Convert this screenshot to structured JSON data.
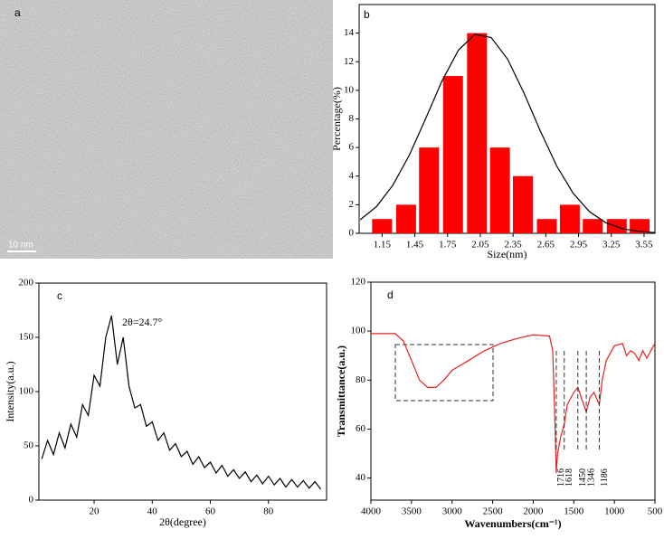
{
  "chart_data": [
    {
      "type": "image",
      "label": "a",
      "scale_bar": "10 nm"
    },
    {
      "type": "bar",
      "label": "b",
      "xlabel": "Size(nm)",
      "ylabel": "Percentage(%)",
      "color": "#ff0000",
      "x": [
        1.15,
        1.37,
        1.58,
        1.8,
        2.02,
        2.23,
        2.44,
        2.66,
        2.87,
        3.08,
        3.3,
        3.51
      ],
      "values": [
        1,
        2,
        6,
        11,
        14,
        6,
        4,
        1,
        2,
        1,
        1,
        1
      ],
      "fit": {
        "color": "#000000",
        "x": [
          0.95,
          1.1,
          1.25,
          1.4,
          1.55,
          1.7,
          1.85,
          2.0,
          2.15,
          2.3,
          2.45,
          2.6,
          2.75,
          2.9,
          3.05,
          3.2,
          3.35,
          3.5,
          3.65
        ],
        "y": [
          0.95,
          1.88,
          3.38,
          5.47,
          8.03,
          10.67,
          12.81,
          13.92,
          13.69,
          12.18,
          9.81,
          7.15,
          4.71,
          2.81,
          1.52,
          0.74,
          0.33,
          0.13,
          0.05
        ]
      },
      "xlim": [
        0.94,
        3.65
      ],
      "xticks": [
        1.15,
        1.45,
        1.75,
        2.05,
        2.35,
        2.65,
        2.95,
        3.25,
        3.55
      ],
      "ylim": [
        0,
        16
      ],
      "yticks": [
        0,
        2,
        4,
        6,
        8,
        10,
        12,
        14
      ]
    },
    {
      "type": "line",
      "label": "c",
      "xlabel": "2θ(degree)",
      "ylabel": "Intensity(a.u.)",
      "annotation": "2θ=24.7°",
      "color": "#000000",
      "x": [
        2,
        4,
        6,
        8,
        10,
        12,
        14,
        16,
        18,
        20,
        22,
        24,
        26,
        28,
        30,
        32,
        34,
        36,
        38,
        40,
        42,
        44,
        46,
        48,
        50,
        52,
        54,
        56,
        58,
        60,
        62,
        64,
        66,
        68,
        70,
        72,
        74,
        76,
        78,
        80,
        82,
        84,
        86,
        88,
        90,
        92,
        94,
        96,
        98
      ],
      "values": [
        38,
        55,
        42,
        62,
        48,
        70,
        58,
        88,
        78,
        115,
        105,
        150,
        170,
        125,
        150,
        105,
        85,
        88,
        68,
        72,
        55,
        62,
        46,
        52,
        40,
        45,
        33,
        40,
        30,
        35,
        25,
        32,
        22,
        28,
        20,
        26,
        17,
        23,
        15,
        22,
        14,
        20,
        12,
        19,
        12,
        18,
        11,
        17,
        10
      ],
      "xlim": [
        1,
        100
      ],
      "xticks": [
        20,
        40,
        60,
        80
      ],
      "ylim": [
        0,
        200
      ],
      "yticks": [
        0,
        50,
        100,
        150,
        200
      ]
    },
    {
      "type": "line",
      "label": "d",
      "xlabel": "Wavenumbers(cm⁻¹)",
      "ylabel": "Transmittance(a.u.)",
      "color": "#e8201e",
      "x": [
        4000,
        3700,
        3600,
        3500,
        3400,
        3300,
        3200,
        3100,
        3000,
        2900,
        2800,
        2600,
        2400,
        2200,
        2000,
        1800,
        1760,
        1730,
        1716,
        1700,
        1660,
        1618,
        1580,
        1500,
        1450,
        1400,
        1346,
        1300,
        1250,
        1200,
        1186,
        1150,
        1100,
        1000,
        900,
        850,
        800,
        750,
        700,
        650,
        600,
        500
      ],
      "values": [
        99,
        99,
        96,
        88,
        80,
        77,
        77,
        80,
        84,
        86,
        88,
        92,
        95,
        97,
        98.5,
        98,
        92,
        60,
        42,
        50,
        57,
        62,
        70,
        75,
        77,
        72,
        67,
        73,
        75,
        71,
        70,
        80,
        88,
        94,
        95,
        90,
        92,
        91,
        88,
        92,
        89,
        95
      ],
      "peaks": [
        1716,
        1618,
        1450,
        1346,
        1186
      ],
      "xlim": [
        4000,
        500
      ],
      "xticks": [
        4000,
        3500,
        3000,
        2500,
        2000,
        1500,
        1000,
        500
      ],
      "ylim": [
        31,
        120
      ],
      "yticks": [
        40,
        60,
        80,
        100,
        120
      ]
    }
  ]
}
